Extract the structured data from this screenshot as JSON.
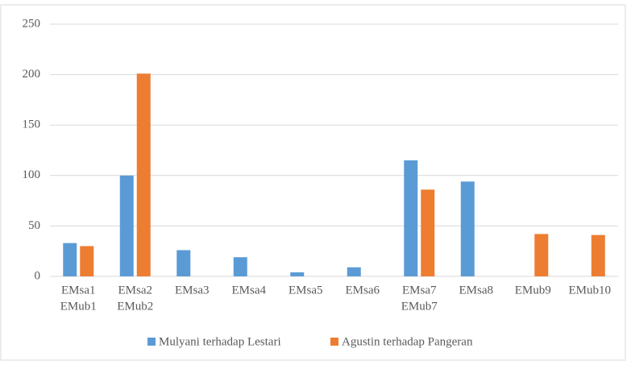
{
  "chart_data": {
    "type": "bar",
    "categories": [
      [
        "EMsa1",
        "EMub1"
      ],
      [
        "EMsa2",
        "EMub2"
      ],
      [
        "EMsa3"
      ],
      [
        "EMsa4"
      ],
      [
        "EMsa5"
      ],
      [
        "EMsa6"
      ],
      [
        "EMsa7",
        "EMub7"
      ],
      [
        "EMsa8"
      ],
      [
        "EMub9"
      ],
      [
        "EMub10"
      ]
    ],
    "series": [
      {
        "name": "Mulyani terhadap Lestari",
        "color": "#5b9bd5",
        "values": [
          33,
          100,
          26,
          19,
          4,
          9,
          115,
          94,
          null,
          null
        ]
      },
      {
        "name": "Agustin terhadap Pangeran",
        "color": "#ed7d31",
        "values": [
          30,
          201,
          null,
          null,
          null,
          null,
          86,
          null,
          42,
          41
        ]
      }
    ],
    "ylim": [
      0,
      250
    ],
    "yticks": [
      0,
      50,
      100,
      150,
      200,
      250
    ],
    "grid": true,
    "legend": "bottom"
  }
}
